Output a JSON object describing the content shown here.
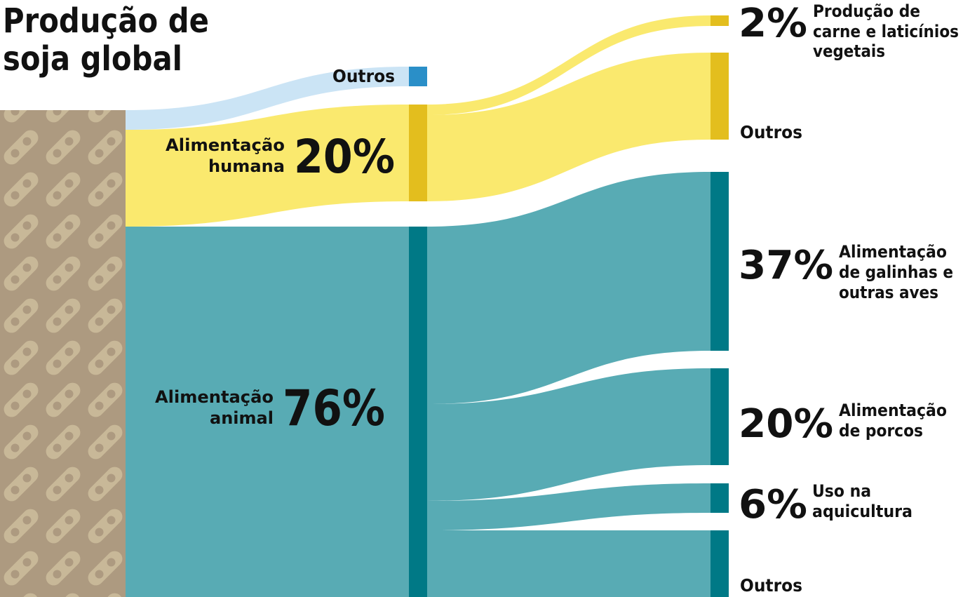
{
  "title": {
    "line1": "Produção de",
    "line2": "soja global"
  },
  "colors": {
    "soy_bg": "#ad9a80",
    "soy_bean": "#c8b898",
    "food_flow": "#fae96e",
    "food_node": "#e3be1e",
    "feed_flow": "#58abb4",
    "feed_node": "#007986",
    "other_flow": "#cbe4f5",
    "other_node": "#2a8fc8"
  },
  "nodes": {
    "other_use": {
      "label": "Outros"
    },
    "human_food": {
      "label_line1": "Alimentação",
      "label_line2": "humana",
      "percent": "20%"
    },
    "animal_feed": {
      "label_line1": "Alimentação",
      "label_line2": "animal",
      "percent": "76%"
    }
  },
  "outputs": {
    "plant_based": {
      "percent": "2%",
      "label_line1": "Produção de",
      "label_line2": "carne e laticínios",
      "label_line3": "vegetais"
    },
    "food_other": {
      "label": "Outros"
    },
    "poultry": {
      "percent": "37%",
      "label_line1": "Alimentação",
      "label_line2": "de galinhas e",
      "label_line3": "outras aves"
    },
    "pigs": {
      "percent": "20%",
      "label_line1": "Alimentação",
      "label_line2": "de porcos"
    },
    "aquaculture": {
      "percent": "6%",
      "label_line1": "Uso na",
      "label_line2": "aquicultura"
    },
    "feed_other": {
      "label": "Outros"
    }
  }
}
